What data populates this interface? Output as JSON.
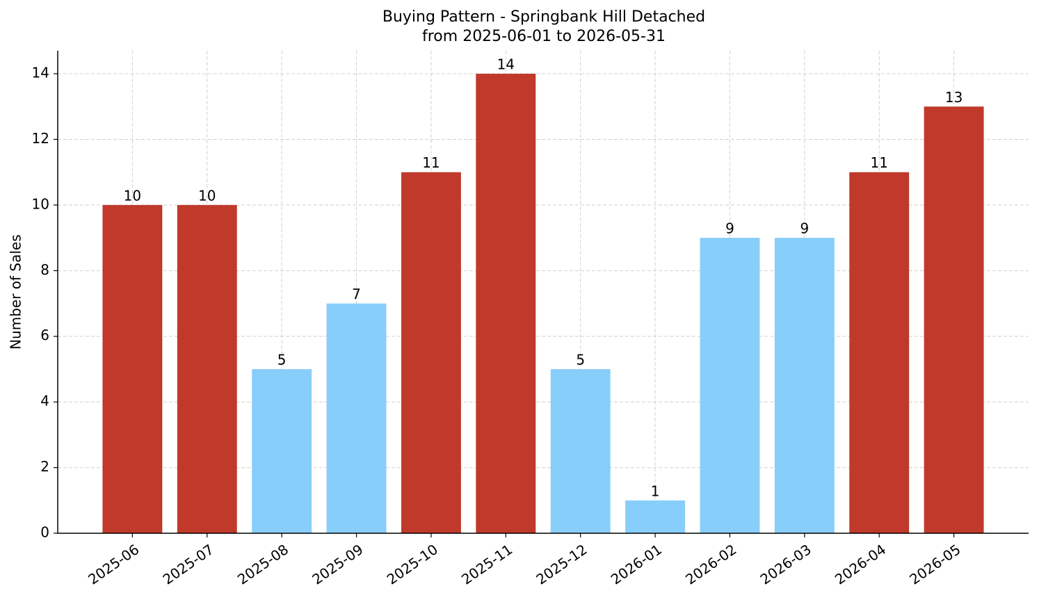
{
  "chart_data": {
    "type": "bar",
    "title": "Buying Pattern - Springbank Hill Detached",
    "subtitle": "from 2025-06-01 to 2026-05-31",
    "y_label": "Number of Sales",
    "categories": [
      "2025-06",
      "2025-07",
      "2025-08",
      "2025-09",
      "2025-10",
      "2025-11",
      "2025-12",
      "2026-01",
      "2026-02",
      "2026-03",
      "2026-04",
      "2026-05"
    ],
    "values": [
      10,
      10,
      5,
      7,
      11,
      14,
      5,
      1,
      9,
      9,
      11,
      13
    ],
    "colors": [
      "#c0392b",
      "#c0392b",
      "#87cefa",
      "#87cefa",
      "#c0392b",
      "#c0392b",
      "#87cefa",
      "#87cefa",
      "#87cefa",
      "#87cefa",
      "#c0392b",
      "#c0392b"
    ],
    "ylim": [
      0,
      14.7
    ],
    "yticks": [
      0,
      2,
      4,
      6,
      8,
      10,
      12,
      14
    ],
    "grid": true
  }
}
